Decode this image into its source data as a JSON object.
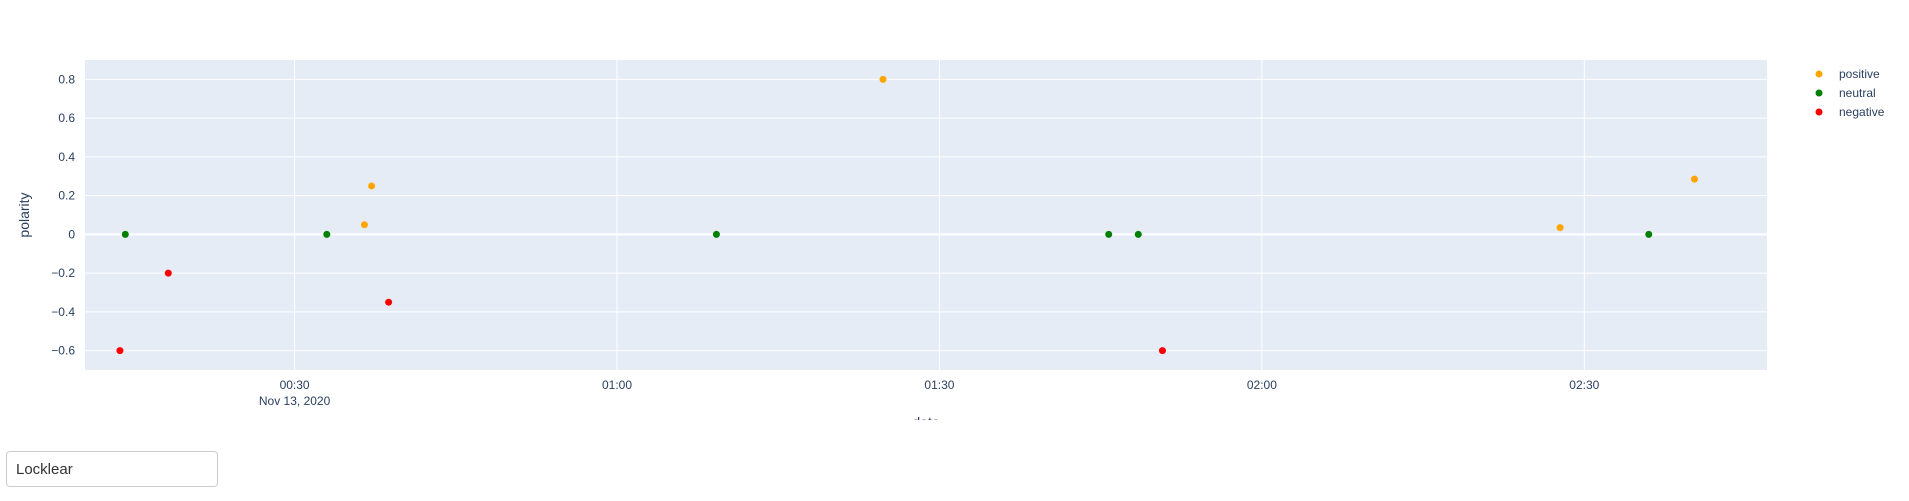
{
  "chart_data": {
    "type": "scatter",
    "xlabel": "date",
    "ylabel": "polarity",
    "x_axis": {
      "type": "date",
      "range": [
        "2020-11-13T00:10:30",
        "2020-11-13T02:47:00"
      ],
      "ticks": [
        {
          "value": "2020-11-13T00:30:00",
          "label": "00:30",
          "sublabel": "Nov 13, 2020"
        },
        {
          "value": "2020-11-13T01:00:00",
          "label": "01:00",
          "sublabel": ""
        },
        {
          "value": "2020-11-13T01:30:00",
          "label": "01:30",
          "sublabel": ""
        },
        {
          "value": "2020-11-13T02:00:00",
          "label": "02:00",
          "sublabel": ""
        },
        {
          "value": "2020-11-13T02:30:00",
          "label": "02:30",
          "sublabel": ""
        }
      ]
    },
    "y_axis": {
      "range": [
        -0.7,
        0.9
      ],
      "ticks": [
        {
          "value": 0.8,
          "label": "0.8"
        },
        {
          "value": 0.6,
          "label": "0.6"
        },
        {
          "value": 0.4,
          "label": "0.4"
        },
        {
          "value": 0.2,
          "label": "0.2"
        },
        {
          "value": 0,
          "label": "0"
        },
        {
          "value": -0.2,
          "label": "−0.2"
        },
        {
          "value": -0.4,
          "label": "−0.4"
        },
        {
          "value": -0.6,
          "label": "−0.6"
        }
      ]
    },
    "grid": true,
    "legend_position": "top-right",
    "series": [
      {
        "name": "positive",
        "color": "#ffa500",
        "points": [
          {
            "x": "2020-11-13T00:36:30",
            "y": 0.05
          },
          {
            "x": "2020-11-13T00:37:10",
            "y": 0.25
          },
          {
            "x": "2020-11-13T01:24:45",
            "y": 0.8
          },
          {
            "x": "2020-11-13T02:27:45",
            "y": 0.035
          },
          {
            "x": "2020-11-13T02:40:15",
            "y": 0.285
          }
        ]
      },
      {
        "name": "neutral",
        "color": "#008000",
        "points": [
          {
            "x": "2020-11-13T00:14:15",
            "y": 0
          },
          {
            "x": "2020-11-13T00:33:00",
            "y": 0
          },
          {
            "x": "2020-11-13T01:09:15",
            "y": 0
          },
          {
            "x": "2020-11-13T01:45:45",
            "y": 0
          },
          {
            "x": "2020-11-13T01:48:30",
            "y": 0
          },
          {
            "x": "2020-11-13T02:36:00",
            "y": 0
          }
        ]
      },
      {
        "name": "negative",
        "color": "#ff0000",
        "points": [
          {
            "x": "2020-11-13T00:13:45",
            "y": -0.6
          },
          {
            "x": "2020-11-13T00:18:15",
            "y": -0.2
          },
          {
            "x": "2020-11-13T00:38:45",
            "y": -0.35
          },
          {
            "x": "2020-11-13T01:50:45",
            "y": -0.6
          }
        ]
      }
    ]
  },
  "colors": {
    "plot_background": "#e5ecf6",
    "grid": "#ffffff",
    "text": "#2a3f5f"
  },
  "dropdown": {
    "selected": "Locklear"
  }
}
